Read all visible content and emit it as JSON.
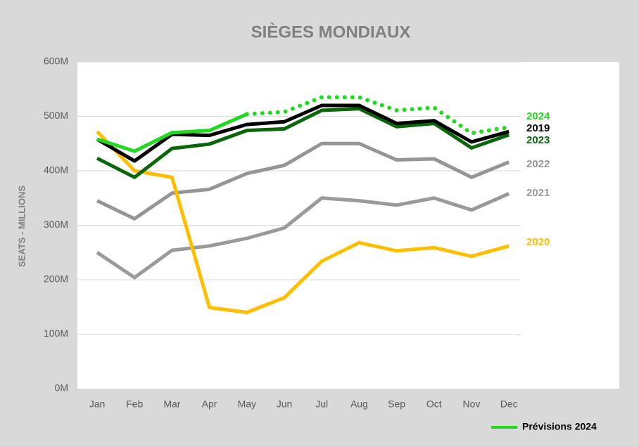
{
  "chart_data": {
    "type": "line",
    "title": "SIÈGES MONDIAUX",
    "y_label": "SEATS - MILLIONS",
    "categories": [
      "Jan",
      "Feb",
      "Mar",
      "Apr",
      "May",
      "Jun",
      "Jul",
      "Aug",
      "Sep",
      "Oct",
      "Nov",
      "Dec"
    ],
    "ylim": [
      0,
      600
    ],
    "yticks": [
      {
        "value": 0,
        "label": "0M"
      },
      {
        "value": 100,
        "label": "100M"
      },
      {
        "value": 200,
        "label": "200M"
      },
      {
        "value": 300,
        "label": "300M"
      },
      {
        "value": 400,
        "label": "400M"
      },
      {
        "value": 500,
        "label": "500M"
      },
      {
        "value": 600,
        "label": "600M"
      }
    ],
    "grid": true,
    "legend": "bottom-right",
    "series": [
      {
        "name": "2021",
        "color": "#9a9a9a",
        "values": [
          250,
          204,
          254,
          262,
          276,
          295,
          350,
          345,
          337,
          350,
          328,
          358
        ]
      },
      {
        "name": "2022",
        "color": "#959595",
        "values": [
          345,
          312,
          359,
          366,
          395,
          410,
          450,
          450,
          420,
          422,
          388,
          416
        ]
      },
      {
        "name": "2020",
        "color": "#ffbf00",
        "values": [
          472,
          400,
          388,
          149,
          140,
          167,
          234,
          268,
          253,
          259,
          243,
          262
        ]
      },
      {
        "name": "2023",
        "color": "#0a660a",
        "values": [
          423,
          388,
          441,
          449,
          474,
          477,
          511,
          514,
          481,
          487,
          442,
          466
        ]
      },
      {
        "name": "2019",
        "color": "#000000",
        "values": [
          458,
          418,
          467,
          465,
          485,
          490,
          520,
          520,
          487,
          492,
          453,
          472
        ]
      },
      {
        "name": "2024",
        "color": "#22d922",
        "values": [
          458,
          436,
          470,
          474,
          504,
          null,
          null,
          null,
          null,
          null,
          null,
          null
        ]
      },
      {
        "name": "Prévisions 2024",
        "color": "#22d922",
        "dashed": true,
        "values": [
          null,
          null,
          null,
          null,
          504,
          508,
          535,
          535,
          511,
          516,
          469,
          480
        ]
      }
    ]
  }
}
